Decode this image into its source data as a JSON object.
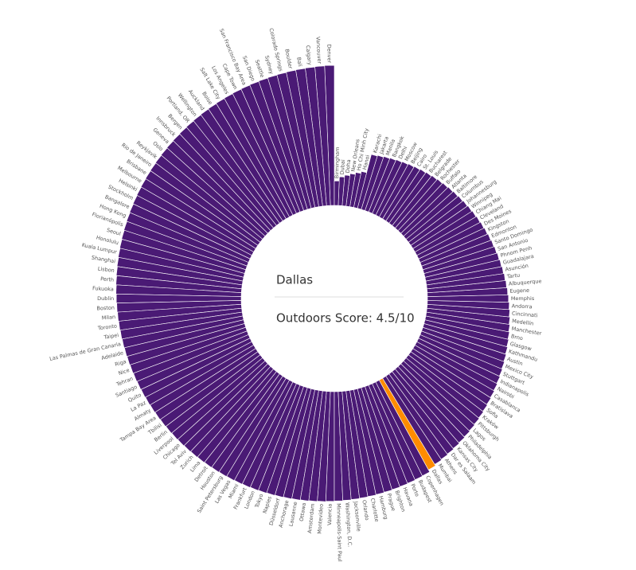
{
  "chart_data": {
    "type": "radial-bar",
    "center_label": "Dallas",
    "center_value": "Outdoors Score: 4.5/10",
    "color": "#4a1a75",
    "highlight_color": "#ff8c00",
    "ylim": [
      2,
      5.5
    ],
    "categories": [
      "Denver",
      "Vancouver",
      "Calgary",
      "Bali",
      "Boulder",
      "Colorado Springs",
      "Sydney",
      "Seattle",
      "San Diego",
      "San Francisco Bay Area",
      "Cape Town",
      "Los Angeles",
      "Salt Lake City",
      "Boise",
      "Auckland",
      "Wellington",
      "Portland, OR",
      "Bergen",
      "Innsbruck",
      "Geneva",
      "Oslo",
      "Reykjavik",
      "Rio de Janeiro",
      "Brisbane",
      "Melbourne",
      "Helsinki",
      "Stockholm",
      "Bangalore",
      "Hong Kong",
      "Florianópolis",
      "Seoul",
      "Honolulu",
      "Kuala Lumpur",
      "Shanghai",
      "Lisbon",
      "Perth",
      "Fukuoka",
      "Dublin",
      "Boston",
      "Milan",
      "Toronto",
      "Taipei",
      "Las Palmas de Gran Canaria",
      "Adelaide",
      "Riga",
      "Nice",
      "Tehran",
      "Santiago",
      "Quito",
      "La Paz",
      "Almaty",
      "Tampa Bay Area",
      "Tbilisi",
      "Berlin",
      "Liverpool",
      "Chicago",
      "Tel Aviv",
      "Zurich",
      "Lima",
      "Detroit",
      "Houston",
      "Saint Petersburg",
      "Las Vegas",
      "Miami",
      "Frankfurt",
      "London",
      "Tokyo",
      "Naples",
      "Düsseldorf",
      "Anchorage",
      "Lausanne",
      "Ottawa",
      "Amsterdam",
      "Montevideo",
      "Valencia",
      "Minneapolis-Saint Paul",
      "Washington, D.C.",
      "Jacksonville",
      "Orlando",
      "Charlotte",
      "Hamburg",
      "Prague",
      "Brighton",
      "Havana",
      "Porto",
      "Budapest",
      "Copenhagen",
      "Dallas",
      "Mumbai",
      "Athens",
      "Dar es Salaam",
      "Kansas City",
      "Oklahoma City",
      "Philadelphia",
      "Lagos",
      "Pittsburgh",
      "Kraków",
      "Sofia",
      "Bratislava",
      "Casablanca",
      "Nairobi",
      "Indianapolis",
      "Stuttgart",
      "Mexico City",
      "Austin",
      "Kathmandu",
      "Glasgow",
      "Brno",
      "Manchester",
      "Medellín",
      "Cincinnati",
      "Andorra",
      "Memphis",
      "Eugene",
      "Albuquerque",
      "Tartu",
      "Asunción",
      "Guadalajara",
      "Phnom Penh",
      "San Antonio",
      "Santo Domingo",
      "Edmonton",
      "Kingston",
      "Des Moines",
      "Cleveland",
      "Chiang Mai",
      "Winnipeg",
      "Johannesburg",
      "Columbus",
      "Baltimore",
      "Atlanta",
      "Buffalo",
      "Rochester",
      "Belgrade",
      "Bucharest",
      "St. Louis",
      "Cairo",
      "Beijing",
      "Moscow",
      "Delhi",
      "Bangkok",
      "Manila",
      "Jakarta",
      "Karachi",
      "Hanoi",
      "Ho Chi Minh City",
      "New Orleans",
      "Doha",
      "Dubai",
      "Birmingham"
    ],
    "values": [
      5.42,
      5.41,
      5.4,
      5.39,
      5.38,
      5.37,
      5.36,
      5.35,
      5.34,
      5.33,
      5.32,
      5.31,
      5.3,
      5.29,
      5.28,
      5.27,
      5.26,
      5.25,
      5.24,
      5.23,
      5.22,
      5.21,
      5.2,
      5.19,
      5.18,
      5.17,
      5.16,
      5.15,
      5.14,
      5.13,
      5.12,
      5.11,
      5.1,
      5.09,
      5.08,
      5.07,
      5.06,
      5.05,
      5.04,
      5.03,
      5.02,
      5.01,
      5.0,
      4.99,
      4.98,
      4.97,
      4.96,
      4.95,
      4.94,
      4.93,
      4.92,
      4.91,
      4.9,
      4.89,
      4.88,
      4.87,
      4.86,
      4.85,
      4.84,
      4.83,
      4.82,
      4.81,
      4.8,
      4.79,
      4.78,
      4.77,
      4.76,
      4.75,
      4.74,
      4.73,
      4.72,
      4.71,
      4.7,
      4.69,
      4.68,
      4.67,
      4.66,
      4.65,
      4.64,
      4.63,
      4.62,
      4.61,
      4.6,
      4.59,
      4.58,
      4.57,
      4.56,
      4.5,
      4.46,
      4.44,
      4.42,
      4.4,
      4.38,
      4.36,
      4.34,
      4.32,
      4.3,
      4.28,
      4.26,
      4.24,
      4.22,
      4.2,
      4.18,
      4.16,
      4.14,
      4.12,
      4.1,
      4.08,
      4.06,
      4.04,
      4.02,
      4.0,
      3.98,
      3.96,
      3.94,
      3.92,
      3.9,
      3.88,
      3.86,
      3.84,
      3.82,
      3.8,
      3.78,
      3.76,
      3.74,
      3.72,
      3.7,
      3.68,
      3.66,
      3.64,
      3.62,
      3.6,
      3.58,
      3.56,
      3.54,
      3.52,
      3.5,
      3.48,
      3.46,
      3.44,
      3.42,
      3.4,
      3.38,
      3.36,
      2.9,
      2.85,
      2.8,
      2.75,
      2.7,
      2.6
    ]
  }
}
